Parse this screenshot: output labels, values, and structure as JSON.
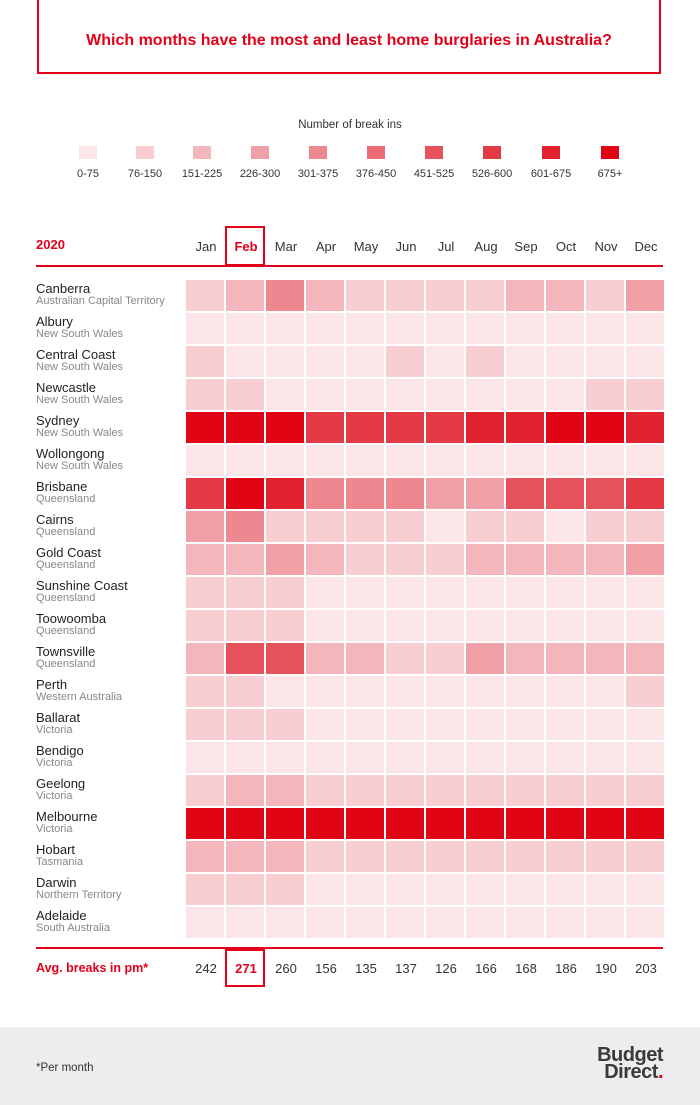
{
  "title": "Which months have the most and least home burglaries in Australia?",
  "legend": {
    "title": "Number of break ins",
    "items": [
      {
        "label": "0-75",
        "color": "#fbe5e7"
      },
      {
        "label": "76-150",
        "color": "#f8ced2"
      },
      {
        "label": "151-225",
        "color": "#f3b6bb"
      },
      {
        "label": "226-300",
        "color": "#f0a1a8"
      },
      {
        "label": "301-375",
        "color": "#ed8890"
      },
      {
        "label": "376-450",
        "color": "#ea6c76"
      },
      {
        "label": "451-525",
        "color": "#e6535d"
      },
      {
        "label": "526-600",
        "color": "#e43a45"
      },
      {
        "label": "601-675",
        "color": "#e2222f"
      },
      {
        "label": "675+",
        "color": "#e00414"
      }
    ]
  },
  "chart_data": {
    "type": "heatmap",
    "title": "Which months have the most and least home burglaries in Australia?",
    "year": "2020",
    "months": [
      "Jan",
      "Feb",
      "Mar",
      "Apr",
      "May",
      "Jun",
      "Jul",
      "Aug",
      "Sep",
      "Oct",
      "Nov",
      "Dec"
    ],
    "highlight_month": "Feb",
    "rows": [
      {
        "city": "Canberra",
        "state": "Australian Capital Territory",
        "levels": [
          1,
          2,
          4,
          2,
          1,
          1,
          1,
          1,
          2,
          2,
          1,
          3
        ]
      },
      {
        "city": "Albury",
        "state": "New South Wales",
        "levels": [
          0,
          0,
          0,
          0,
          0,
          0,
          0,
          0,
          0,
          0,
          0,
          0
        ]
      },
      {
        "city": "Central Coast",
        "state": "New South Wales",
        "levels": [
          1,
          0,
          0,
          0,
          0,
          1,
          0,
          1,
          0,
          0,
          0,
          0
        ]
      },
      {
        "city": "Newcastle",
        "state": "New South Wales",
        "levels": [
          1,
          1,
          0,
          0,
          0,
          0,
          0,
          0,
          0,
          0,
          1,
          1
        ]
      },
      {
        "city": "Sydney",
        "state": "New South Wales",
        "levels": [
          9,
          9,
          9,
          7,
          7,
          7,
          7,
          8,
          8,
          9,
          9,
          8
        ]
      },
      {
        "city": "Wollongong",
        "state": "New South Wales",
        "levels": [
          0,
          0,
          0,
          0,
          0,
          0,
          0,
          0,
          0,
          0,
          0,
          0
        ]
      },
      {
        "city": "Brisbane",
        "state": "Queensland",
        "levels": [
          7,
          9,
          8,
          4,
          4,
          4,
          3,
          3,
          6,
          6,
          6,
          7
        ]
      },
      {
        "city": "Cairns",
        "state": "Queensland",
        "levels": [
          3,
          4,
          1,
          1,
          1,
          1,
          0,
          1,
          1,
          0,
          1,
          1
        ]
      },
      {
        "city": "Gold Coast",
        "state": "Queensland",
        "levels": [
          2,
          2,
          3,
          2,
          1,
          1,
          1,
          2,
          2,
          2,
          2,
          3
        ]
      },
      {
        "city": "Sunshine Coast",
        "state": "Queensland",
        "levels": [
          1,
          1,
          1,
          0,
          0,
          0,
          0,
          0,
          0,
          0,
          0,
          0
        ]
      },
      {
        "city": "Toowoomba",
        "state": "Queensland",
        "levels": [
          1,
          1,
          1,
          0,
          0,
          0,
          0,
          0,
          0,
          0,
          0,
          0
        ]
      },
      {
        "city": "Townsville",
        "state": "Queensland",
        "levels": [
          2,
          6,
          6,
          2,
          2,
          1,
          1,
          3,
          2,
          2,
          2,
          2
        ]
      },
      {
        "city": "Perth",
        "state": "Western Australia",
        "levels": [
          1,
          1,
          0,
          0,
          0,
          0,
          0,
          0,
          0,
          0,
          0,
          1
        ]
      },
      {
        "city": "Ballarat",
        "state": "Victoria",
        "levels": [
          1,
          1,
          1,
          0,
          0,
          0,
          0,
          0,
          0,
          0,
          0,
          0
        ]
      },
      {
        "city": "Bendigo",
        "state": "Victoria",
        "levels": [
          0,
          0,
          0,
          0,
          0,
          0,
          0,
          0,
          0,
          0,
          0,
          0
        ]
      },
      {
        "city": "Geelong",
        "state": "Victoria",
        "levels": [
          1,
          2,
          2,
          1,
          1,
          1,
          1,
          1,
          1,
          1,
          1,
          1
        ]
      },
      {
        "city": "Melbourne",
        "state": "Victoria",
        "levels": [
          9,
          9,
          9,
          9,
          9,
          9,
          9,
          9,
          9,
          9,
          9,
          9
        ]
      },
      {
        "city": "Hobart",
        "state": "Tasmania",
        "levels": [
          2,
          2,
          2,
          1,
          1,
          1,
          1,
          1,
          1,
          1,
          1,
          1
        ]
      },
      {
        "city": "Darwin",
        "state": "Northern Territory",
        "levels": [
          1,
          1,
          1,
          0,
          0,
          0,
          0,
          0,
          0,
          0,
          0,
          0
        ]
      },
      {
        "city": "Adelaide",
        "state": "South Australia",
        "levels": [
          0,
          0,
          0,
          0,
          0,
          0,
          0,
          0,
          0,
          0,
          0,
          0
        ]
      }
    ],
    "avg_label": "Avg. breaks in pm*",
    "averages": [
      242,
      271,
      260,
      156,
      135,
      137,
      126,
      166,
      168,
      186,
      190,
      203
    ]
  },
  "footer": {
    "note": "*Per month",
    "logo_line1": "Budget",
    "logo_line2": "Direct"
  }
}
